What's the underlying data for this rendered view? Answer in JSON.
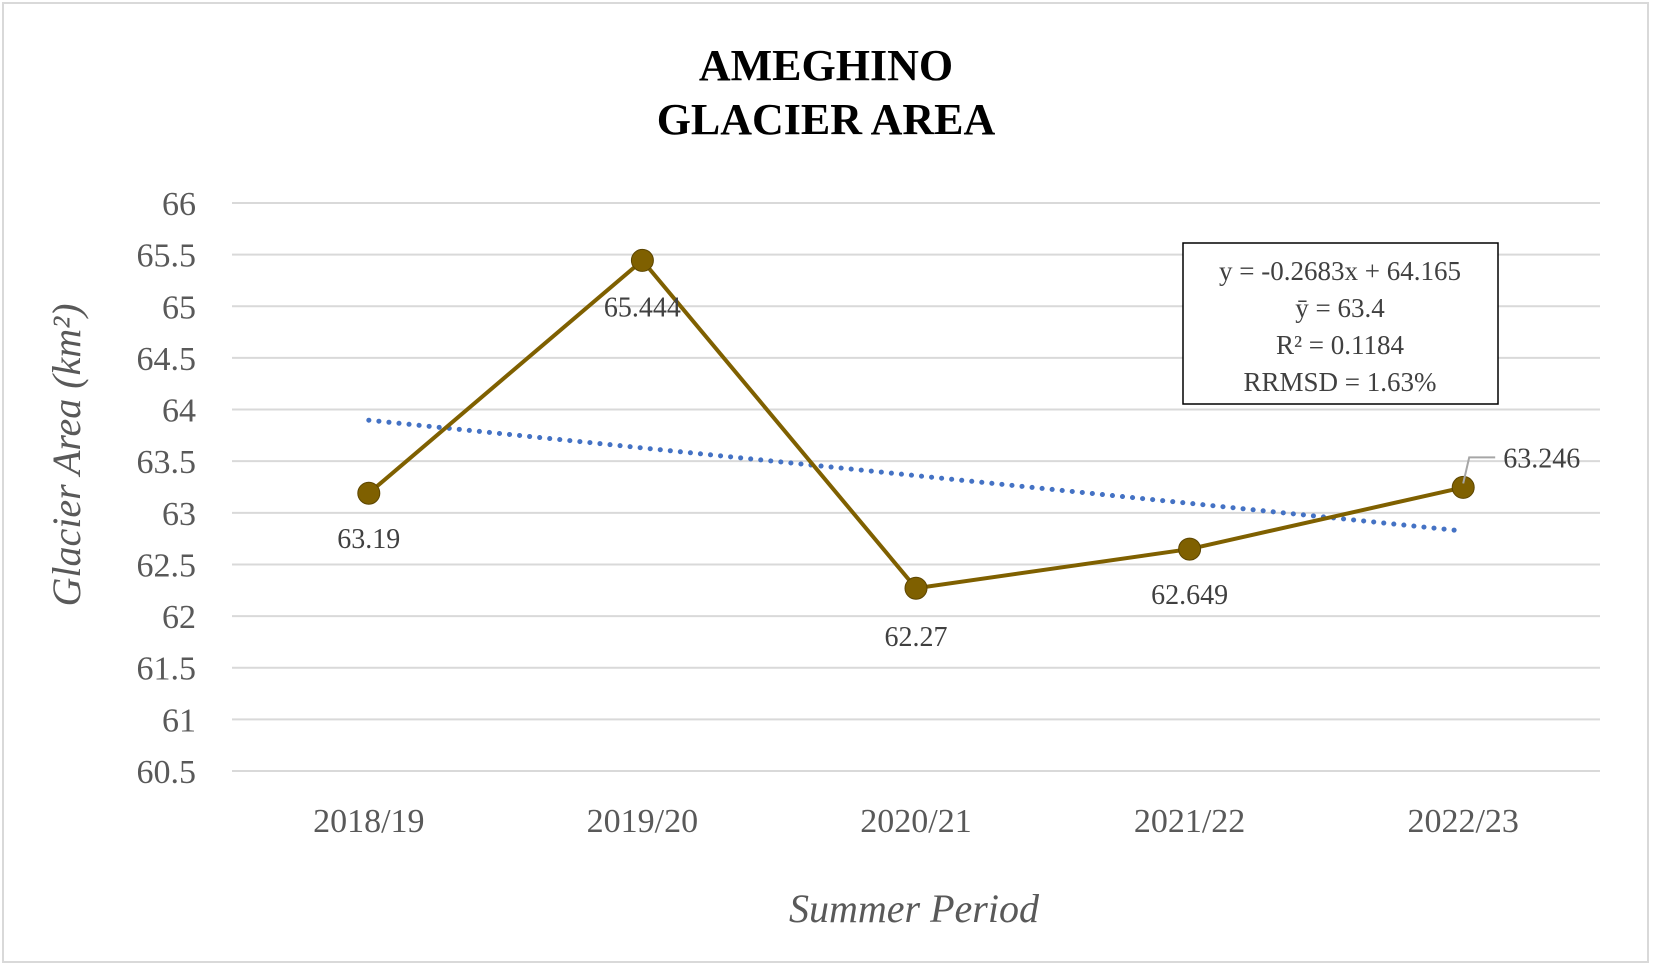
{
  "chart_data": {
    "type": "line",
    "title_lines": [
      "AMEGHINO",
      "GLACIER AREA"
    ],
    "xlabel": "Summer Period",
    "ylabel": "Glacier Area (km²)",
    "categories": [
      "2018/19",
      "2019/20",
      "2020/21",
      "2021/22",
      "2022/23"
    ],
    "ylim": [
      60.5,
      66
    ],
    "yticks": [
      "66",
      "65.5",
      "65",
      "64.5",
      "64",
      "63.5",
      "63",
      "62.5",
      "62",
      "61.5",
      "61",
      "60.5"
    ],
    "grid": true,
    "series": [
      {
        "values": [
          63.19,
          65.444,
          62.27,
          62.649,
          63.246
        ],
        "data_labels": [
          "63.19",
          "65.444",
          "62.27",
          "62.649",
          "63.246"
        ],
        "color": "#7f6000"
      }
    ],
    "trendline": {
      "style": "dotted",
      "color": "#4472c4",
      "start_value": 63.8967,
      "end_value": 62.8235
    },
    "equation_box": {
      "lines": [
        "y = -0.2683x + 64.165",
        "ȳ = 63.4",
        "R² = 0.1184",
        "RRMSD = 1.63%"
      ]
    }
  }
}
